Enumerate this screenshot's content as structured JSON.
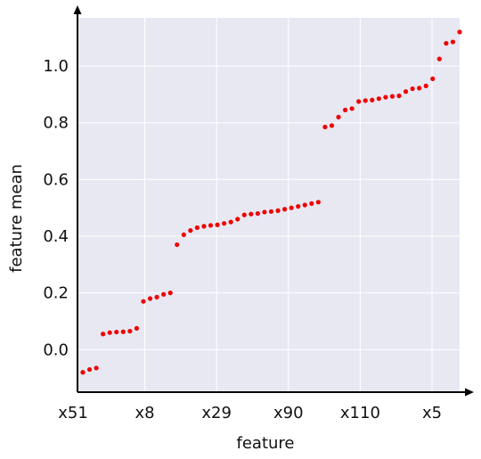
{
  "chart_data": {
    "type": "scatter",
    "xlabel": "feature",
    "ylabel": "feature mean",
    "x_tick_labels": [
      "x51",
      "x8",
      "x29",
      "x90",
      "x110",
      "x5"
    ],
    "y_tick_labels": [
      "0.0",
      "0.2",
      "0.4",
      "0.6",
      "0.8",
      "1.0"
    ],
    "ylim": [
      -0.15,
      1.17
    ],
    "grid": true,
    "colors": {
      "point": "#ee0000",
      "plot_background": "#e8e8f2",
      "gridline": "#ffffff",
      "axis": "#000000"
    },
    "series": [
      {
        "values": [
          -0.08,
          -0.07,
          -0.065,
          0.055,
          0.06,
          0.062,
          0.063,
          0.065,
          0.075,
          0.17,
          0.18,
          0.185,
          0.195,
          0.2,
          0.37,
          0.405,
          0.42,
          0.43,
          0.435,
          0.438,
          0.44,
          0.445,
          0.45,
          0.46,
          0.475,
          0.478,
          0.48,
          0.485,
          0.487,
          0.49,
          0.495,
          0.5,
          0.505,
          0.51,
          0.515,
          0.52,
          0.785,
          0.79,
          0.82,
          0.845,
          0.85,
          0.875,
          0.878,
          0.88,
          0.885,
          0.89,
          0.893,
          0.895,
          0.91,
          0.92,
          0.922,
          0.93,
          0.955,
          1.025,
          1.08,
          1.085,
          1.12
        ]
      }
    ]
  }
}
